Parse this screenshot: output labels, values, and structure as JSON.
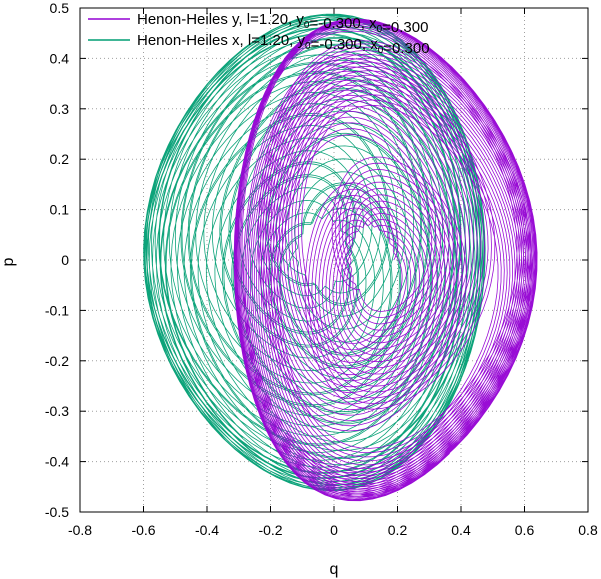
{
  "chart_data": {
    "type": "line",
    "title": "",
    "xlabel": "q",
    "ylabel": "p",
    "xlim": [
      -0.8,
      0.8
    ],
    "ylim": [
      -0.5,
      0.5
    ],
    "xticks": [
      "-0.8",
      "-0.6",
      "-0.4",
      "-0.2",
      "0",
      "0.2",
      "0.4",
      "0.6",
      "0.8"
    ],
    "yticks": [
      "-0.5",
      "-0.4",
      "-0.3",
      "-0.2",
      "-0.1",
      "0",
      "0.1",
      "0.2",
      "0.3",
      "0.4",
      "0.5"
    ],
    "grid": true,
    "legend_position": "top-left",
    "series": [
      {
        "name": "Henon-Heiles y, l=1.20, y0=-0.300, x0=0.300",
        "legend_main": "Henon-Heiles y, l=1.20, y",
        "legend_sub1": "0",
        "legend_mid": "=-0.300, x",
        "legend_sub2": "0",
        "legend_end": "=0.300",
        "color": "#9400d3",
        "q_range": [
          -0.41,
          0.64
        ],
        "p_range": [
          -0.46,
          0.46
        ]
      },
      {
        "name": "Henon-Heiles x, l=1.20, y0=-0.300, x0=0.300",
        "legend_main": "Henon-Heiles x, l=1.20, y",
        "legend_sub1": "0",
        "legend_mid": "=-0.300, x",
        "legend_sub2": "0",
        "legend_end": "=0.300",
        "color": "#009e73",
        "q_range": [
          -0.6,
          0.53
        ],
        "p_range": [
          -0.44,
          0.47
        ]
      }
    ]
  }
}
